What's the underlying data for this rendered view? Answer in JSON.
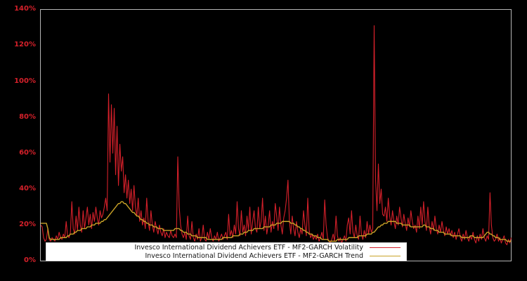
{
  "colors": {
    "background": "#000000",
    "plot_border": "#b5b5b5",
    "axis_label": "#d4202a",
    "volatility_line": "#d4202a",
    "trend_line": "#c9a227",
    "legend_background": "#ffffff",
    "legend_text": "#141414"
  },
  "chart_data": {
    "type": "line",
    "title": "",
    "xlabel": "",
    "ylabel": "",
    "ylim": [
      0,
      140
    ],
    "grid": false,
    "legend_position": "lower center",
    "x_tick_labels": [],
    "ytick_labels": [
      "0%",
      "20%",
      "40%",
      "60%",
      "80%",
      "100%",
      "120%",
      "140%"
    ],
    "ytick_values": [
      0,
      20,
      40,
      60,
      80,
      100,
      120,
      140
    ],
    "series": [
      {
        "name": "Invesco International Dividend Achievers ETF - MF2-GARCH Volatility",
        "color": "#d4202a",
        "unit": "%",
        "values": [
          20,
          19,
          13,
          11,
          12,
          18,
          12,
          11,
          13,
          12,
          11,
          14,
          12,
          16,
          13,
          12,
          15,
          13,
          22,
          14,
          13,
          16,
          33,
          18,
          15,
          25,
          17,
          30,
          20,
          16,
          28,
          18,
          24,
          30,
          20,
          26,
          18,
          27,
          22,
          30,
          24,
          20,
          28,
          24,
          26,
          30,
          35,
          28,
          93,
          55,
          87,
          60,
          85,
          48,
          75,
          42,
          65,
          50,
          58,
          38,
          48,
          35,
          45,
          32,
          40,
          28,
          42,
          30,
          25,
          35,
          22,
          28,
          20,
          24,
          18,
          35,
          22,
          17,
          28,
          20,
          16,
          22,
          18,
          15,
          20,
          16,
          14,
          18,
          13,
          16,
          14,
          13,
          17,
          14,
          13,
          15,
          13,
          58,
          30,
          20,
          15,
          13,
          16,
          12,
          25,
          14,
          12,
          22,
          13,
          11,
          15,
          12,
          18,
          11,
          13,
          20,
          12,
          11,
          16,
          12,
          18,
          13,
          11,
          14,
          12,
          16,
          11,
          13,
          15,
          12,
          14,
          16,
          12,
          26,
          14,
          17,
          13,
          20,
          15,
          33,
          18,
          14,
          28,
          16,
          20,
          14,
          25,
          17,
          30,
          15,
          22,
          28,
          18,
          16,
          30,
          18,
          22,
          35,
          17,
          25,
          15,
          20,
          28,
          16,
          22,
          18,
          32,
          25,
          17,
          30,
          20,
          15,
          24,
          28,
          35,
          45,
          22,
          15,
          25,
          18,
          14,
          22,
          16,
          13,
          18,
          15,
          28,
          20,
          14,
          35,
          17,
          13,
          15,
          12,
          14,
          12,
          15,
          11,
          13,
          16,
          12,
          34,
          20,
          13,
          11,
          10,
          12,
          15,
          11,
          25,
          14,
          11,
          13,
          10,
          12,
          14,
          11,
          20,
          24,
          15,
          28,
          16,
          13,
          20,
          14,
          12,
          25,
          15,
          12,
          17,
          13,
          22,
          15,
          20,
          16,
          18,
          131,
          45,
          28,
          54,
          32,
          40,
          26,
          25,
          30,
          22,
          35,
          25,
          20,
          28,
          22,
          18,
          25,
          20,
          30,
          24,
          19,
          26,
          21,
          17,
          24,
          19,
          28,
          22,
          18,
          20,
          16,
          25,
          18,
          30,
          20,
          33,
          22,
          17,
          30,
          19,
          15,
          22,
          17,
          25,
          18,
          15,
          20,
          16,
          22,
          17,
          14,
          19,
          15,
          18,
          14,
          17,
          13,
          16,
          12,
          15,
          18,
          13,
          11,
          15,
          12,
          17,
          13,
          11,
          14,
          12,
          16,
          12,
          10,
          14,
          11,
          15,
          12,
          18,
          13,
          11,
          14,
          12,
          38,
          20,
          13,
          11,
          12,
          15,
          11,
          13,
          10,
          12,
          14,
          10,
          9,
          12,
          10,
          13
        ]
      },
      {
        "name": "Invesco International Dividend Achievers ETF - MF2-GARCH Trend",
        "color": "#c9a227",
        "unit": "%",
        "values": [
          21,
          21,
          21,
          21,
          21,
          18,
          13,
          12,
          12,
          12,
          12,
          12,
          12,
          12,
          13,
          13,
          13,
          13,
          13,
          14,
          14,
          15,
          15,
          15,
          16,
          16,
          17,
          17,
          17,
          18,
          18,
          18,
          18,
          19,
          19,
          19,
          20,
          20,
          20,
          21,
          21,
          21,
          21,
          22,
          22,
          23,
          23,
          24,
          25,
          26,
          27,
          28,
          29,
          30,
          31,
          32,
          32,
          33,
          33,
          32,
          32,
          31,
          30,
          29,
          28,
          27,
          27,
          26,
          25,
          25,
          24,
          23,
          23,
          22,
          22,
          21,
          21,
          20,
          20,
          20,
          19,
          19,
          19,
          18,
          18,
          18,
          18,
          17,
          17,
          17,
          17,
          17,
          17,
          17,
          17,
          18,
          18,
          18,
          18,
          17,
          17,
          16,
          16,
          16,
          15,
          15,
          15,
          14,
          14,
          14,
          14,
          13,
          13,
          13,
          13,
          13,
          13,
          13,
          12,
          12,
          12,
          12,
          12,
          12,
          12,
          12,
          12,
          12,
          12,
          13,
          13,
          13,
          13,
          13,
          13,
          13,
          14,
          14,
          14,
          14,
          14,
          15,
          15,
          15,
          16,
          16,
          16,
          17,
          17,
          17,
          17,
          18,
          18,
          18,
          18,
          18,
          18,
          18,
          19,
          19,
          19,
          19,
          19,
          20,
          20,
          20,
          20,
          21,
          21,
          21,
          21,
          22,
          22,
          22,
          22,
          22,
          22,
          21,
          21,
          21,
          20,
          20,
          19,
          19,
          18,
          18,
          17,
          17,
          16,
          16,
          15,
          15,
          15,
          14,
          14,
          14,
          13,
          13,
          13,
          12,
          12,
          12,
          12,
          12,
          11,
          11,
          11,
          11,
          11,
          11,
          12,
          12,
          12,
          12,
          12,
          12,
          12,
          12,
          13,
          13,
          13,
          13,
          13,
          13,
          13,
          14,
          14,
          14,
          14,
          14,
          14,
          15,
          15,
          15,
          15,
          16,
          16,
          17,
          18,
          19,
          19,
          20,
          20,
          21,
          21,
          21,
          22,
          22,
          22,
          22,
          22,
          22,
          21,
          21,
          21,
          21,
          20,
          20,
          20,
          20,
          20,
          20,
          19,
          19,
          19,
          19,
          19,
          19,
          19,
          19,
          19,
          20,
          20,
          19,
          19,
          19,
          18,
          18,
          18,
          17,
          17,
          17,
          16,
          16,
          16,
          16,
          15,
          15,
          15,
          15,
          15,
          14,
          14,
          14,
          14,
          14,
          14,
          14,
          13,
          13,
          13,
          13,
          13,
          13,
          14,
          14,
          14,
          13,
          13,
          13,
          13,
          13,
          13,
          13,
          14,
          15,
          16,
          16,
          15,
          15,
          14,
          14,
          13,
          13,
          13,
          12,
          12,
          12,
          12,
          12,
          11,
          11,
          11,
          11
        ]
      }
    ]
  },
  "legend": {
    "entries": [
      {
        "label": "Invesco International Dividend Achievers ETF - MF2-GARCH Volatility"
      },
      {
        "label": "Invesco International Dividend Achievers ETF - MF2-GARCH Trend"
      }
    ]
  }
}
